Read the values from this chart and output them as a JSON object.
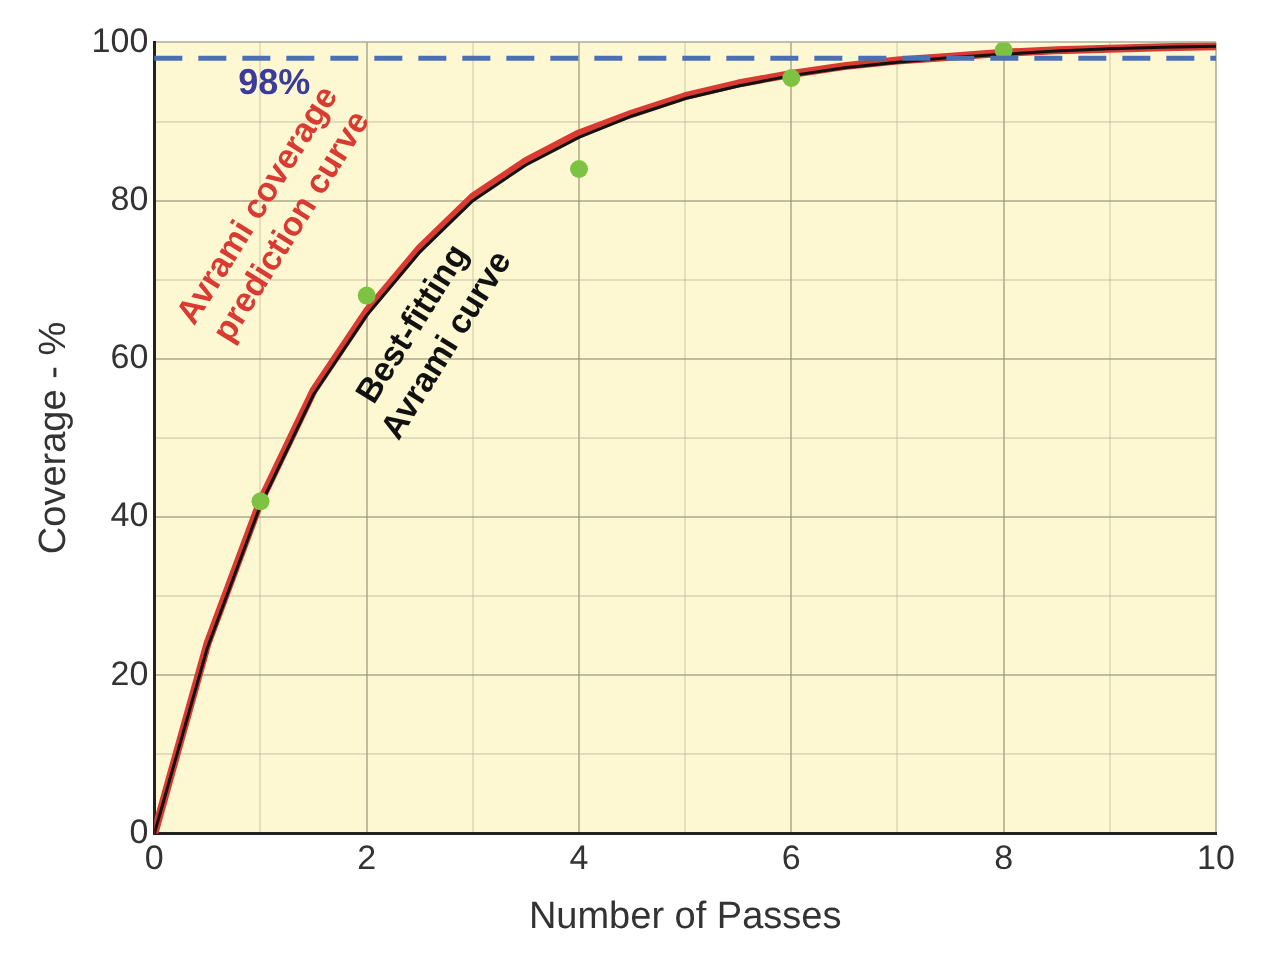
{
  "chart_data": {
    "type": "line",
    "xlabel": "Number of Passes",
    "ylabel": "Coverage - %",
    "xlim": [
      0,
      10
    ],
    "ylim": [
      0,
      100
    ],
    "xticks": [
      0,
      {
        "value": 1,
        "label": null
      },
      2,
      {
        "value": 3,
        "label": null
      },
      4,
      {
        "value": 5,
        "label": null
      },
      6,
      {
        "value": 7,
        "label": null
      },
      8,
      {
        "value": 9,
        "label": null
      },
      10
    ],
    "yticks": [
      0,
      {
        "value": 10,
        "label": null
      },
      20,
      {
        "value": 30,
        "label": null
      },
      40,
      {
        "value": 50,
        "label": null
      },
      60,
      {
        "value": 70,
        "label": null
      },
      80,
      {
        "value": 90,
        "label": null
      },
      100
    ],
    "grid": true,
    "legend": false,
    "ref_lines": [
      {
        "axis": "y",
        "value": 98,
        "label": "98%",
        "color": "#4a6fb5",
        "line_style": "dashed"
      }
    ],
    "series": [
      {
        "name": "Best-fitting Avrami curve",
        "color": "#111111",
        "marker": "none",
        "line_style": "solid",
        "x": [
          0,
          0.5,
          1,
          1.5,
          2,
          2.5,
          3,
          3.5,
          4,
          4.5,
          5,
          5.5,
          6,
          6.5,
          7,
          7.5,
          8,
          8.5,
          9,
          9.5,
          10
        ],
        "values": [
          0,
          23.5,
          41.5,
          55.5,
          65.5,
          73.5,
          80,
          84.5,
          88,
          90.7,
          92.9,
          94.5,
          95.8,
          96.8,
          97.5,
          98.1,
          98.5,
          98.9,
          99.2,
          99.4,
          99.5
        ]
      },
      {
        "name": "Avrami coverage prediction curve",
        "color": "#d93a32",
        "marker": "none",
        "line_style": "solid",
        "x": [
          0,
          0.5,
          1,
          1.5,
          2,
          2.5,
          3,
          3.5,
          4,
          4.5,
          5,
          5.5,
          6,
          6.5,
          7,
          7.5,
          8,
          8.5,
          9,
          9.5,
          10
        ],
        "values": [
          0,
          24,
          42,
          56,
          66,
          74,
          80.5,
          85,
          88.5,
          91,
          93.2,
          94.8,
          96,
          97,
          97.7,
          98.2,
          98.7,
          99,
          99.2,
          99.4,
          99.5
        ]
      },
      {
        "type": "scatter",
        "color": "#7dc242",
        "marker": "circle",
        "x": [
          1,
          2,
          4,
          6,
          8
        ],
        "values": [
          42,
          68,
          84,
          95.5,
          99
        ]
      }
    ]
  }
}
